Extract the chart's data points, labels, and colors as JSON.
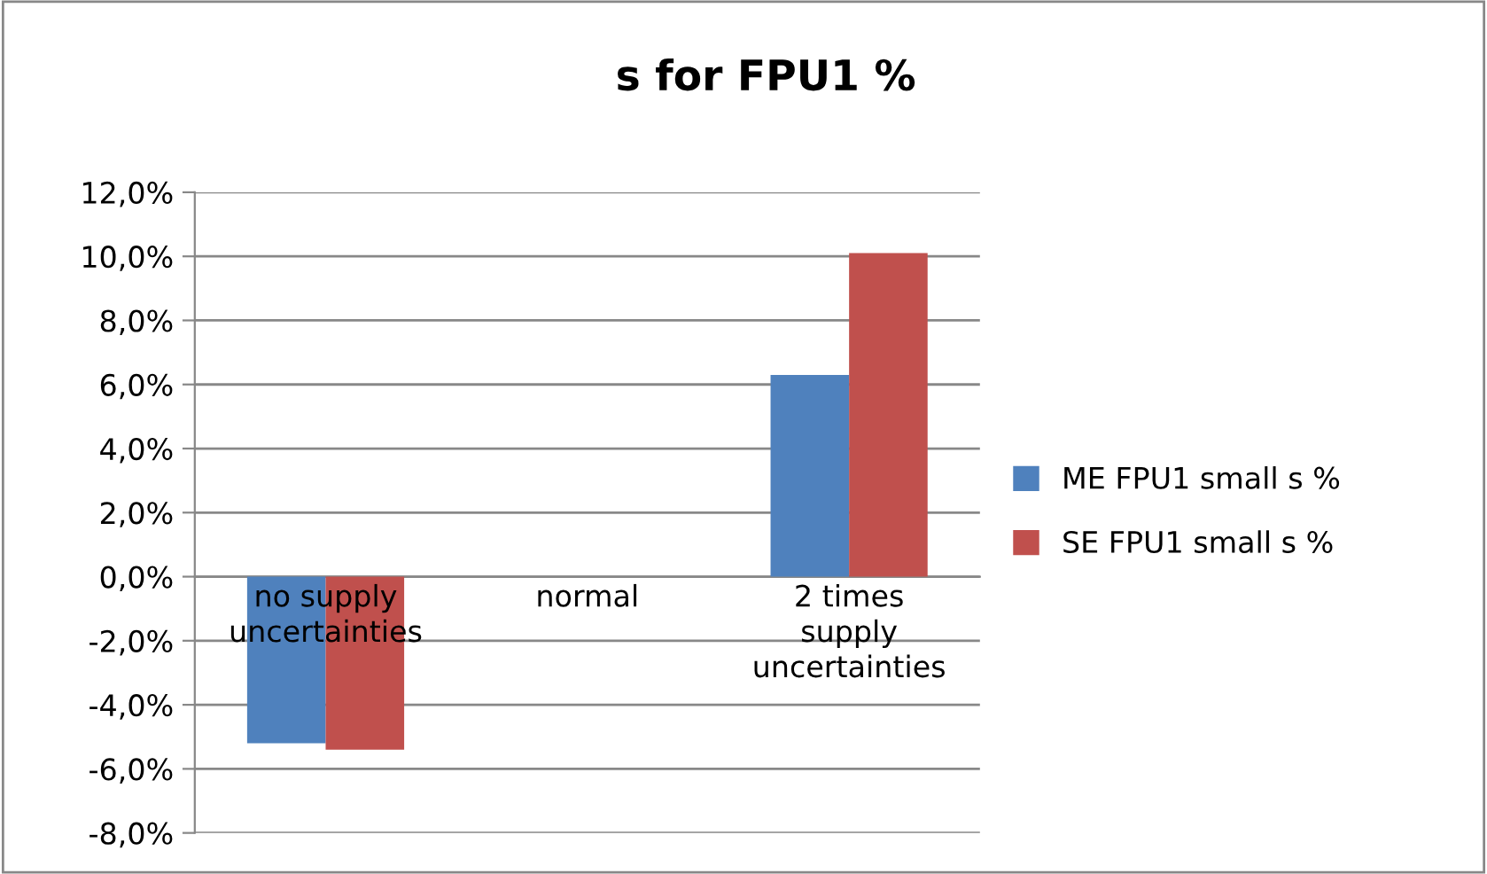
{
  "chart_data": {
    "type": "bar",
    "title": "s for FPU1 %",
    "categories": [
      "no supply\nuncertainties",
      "normal",
      "2 times\nsupply\nuncertainties"
    ],
    "series": [
      {
        "name": "ME FPU1 small s %",
        "color": "#4f81bd",
        "values": [
          -5.2,
          0,
          6.3
        ]
      },
      {
        "name": "SE FPU1 small s %",
        "color": "#c0504d",
        "values": [
          -5.4,
          0,
          10.1
        ]
      }
    ],
    "ylim": [
      -8,
      12
    ],
    "yticks": [
      {
        "value": -8,
        "label": "-8,0%"
      },
      {
        "value": -6,
        "label": "-6,0%"
      },
      {
        "value": -4,
        "label": "-4,0%"
      },
      {
        "value": -2,
        "label": "-2,0%"
      },
      {
        "value": 0,
        "label": "0,0%"
      },
      {
        "value": 2,
        "label": "2,0%"
      },
      {
        "value": 4,
        "label": "4,0%"
      },
      {
        "value": 6,
        "label": "6,0%"
      },
      {
        "value": 8,
        "label": "8,0%"
      },
      {
        "value": 10,
        "label": "10,0%"
      },
      {
        "value": 12,
        "label": "12,0%"
      }
    ],
    "grid": "y",
    "legend": "right"
  }
}
